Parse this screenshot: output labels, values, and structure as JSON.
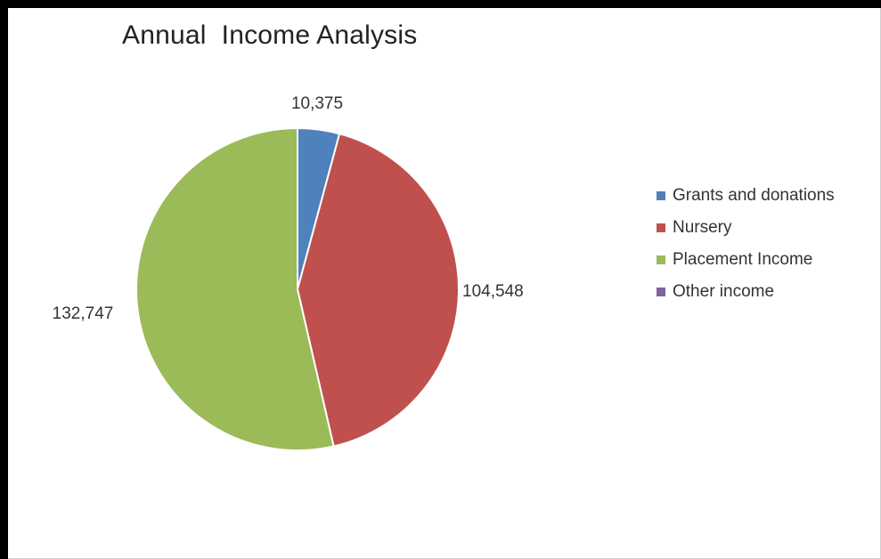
{
  "chart_data": {
    "type": "pie",
    "title": "Annual  Income Analysis",
    "categories": [
      "Grants and donations",
      "Nursery",
      "Placement Income",
      "Other income"
    ],
    "values": [
      10375,
      104548,
      132747,
      0
    ],
    "data_labels": [
      "10,375",
      "104,548",
      "132,747",
      ""
    ],
    "colors": [
      "#4f81bd",
      "#c0504d",
      "#9bbb59",
      "#8064a2"
    ],
    "start_angle_deg": 0,
    "direction": "clockwise",
    "legend_position": "right"
  }
}
